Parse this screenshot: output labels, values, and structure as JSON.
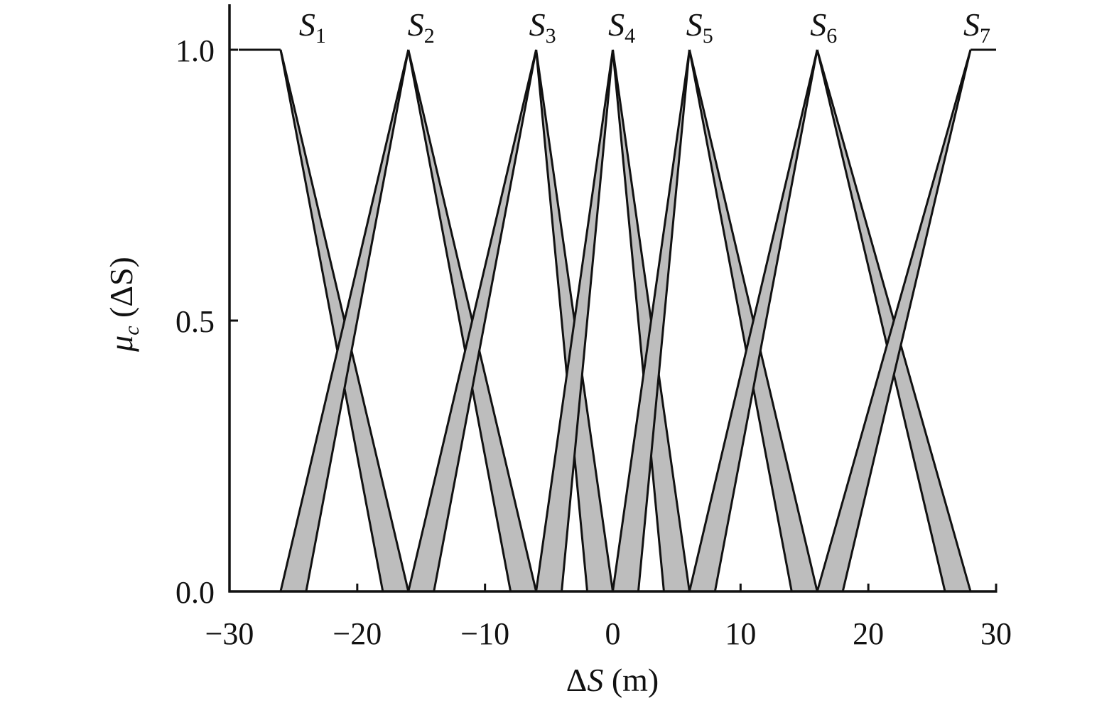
{
  "chart_data": {
    "type": "area",
    "title": "",
    "xlabel": {
      "delta": "Δ",
      "var": "S",
      "unit": " (m)"
    },
    "ylabel": {
      "mu": "μ",
      "sub": "c",
      "arg": " (ΔS)"
    },
    "xlim": [
      -30,
      30
    ],
    "ylim": [
      0,
      1.0
    ],
    "xticks": [
      -30,
      -20,
      -10,
      0,
      10,
      20,
      30
    ],
    "xtick_labels": [
      "−30",
      "−20",
      "−10",
      "0",
      "10",
      "20",
      "30"
    ],
    "yticks": [
      0.0,
      0.5,
      1.0
    ],
    "ytick_labels": [
      "0.0",
      "0.5",
      "1.0"
    ],
    "grid": false,
    "fill_color": "#bdbdbd",
    "line_color": "#111111",
    "series": [
      {
        "name": "S",
        "sub": "1",
        "peak": -26,
        "shape": "left-shoulder",
        "right_foot": [
          -18,
          -16
        ],
        "label_x": -23.5
      },
      {
        "name": "S",
        "sub": "2",
        "peak": -16,
        "left_foot": [
          -26,
          -24
        ],
        "right_foot": [
          -8,
          -6
        ],
        "label_x": -15
      },
      {
        "name": "S",
        "sub": "3",
        "peak": -6,
        "left_foot": [
          -16,
          -14
        ],
        "right_foot": [
          -2,
          0
        ],
        "label_x": -5.5
      },
      {
        "name": "S",
        "sub": "4",
        "peak": 0,
        "left_foot": [
          -6,
          -4
        ],
        "right_foot": [
          4,
          6
        ],
        "label_x": 0.7
      },
      {
        "name": "S",
        "sub": "5",
        "peak": 6,
        "left_foot": [
          0,
          2
        ],
        "right_foot": [
          14,
          16
        ],
        "label_x": 6.8
      },
      {
        "name": "S",
        "sub": "6",
        "peak": 16,
        "left_foot": [
          6,
          8
        ],
        "right_foot": [
          26,
          28
        ],
        "label_x": 16.5
      },
      {
        "name": "S",
        "sub": "7",
        "peak": 28,
        "shape": "right-shoulder",
        "left_foot": [
          16,
          18
        ],
        "label_x": 28.5
      }
    ]
  }
}
